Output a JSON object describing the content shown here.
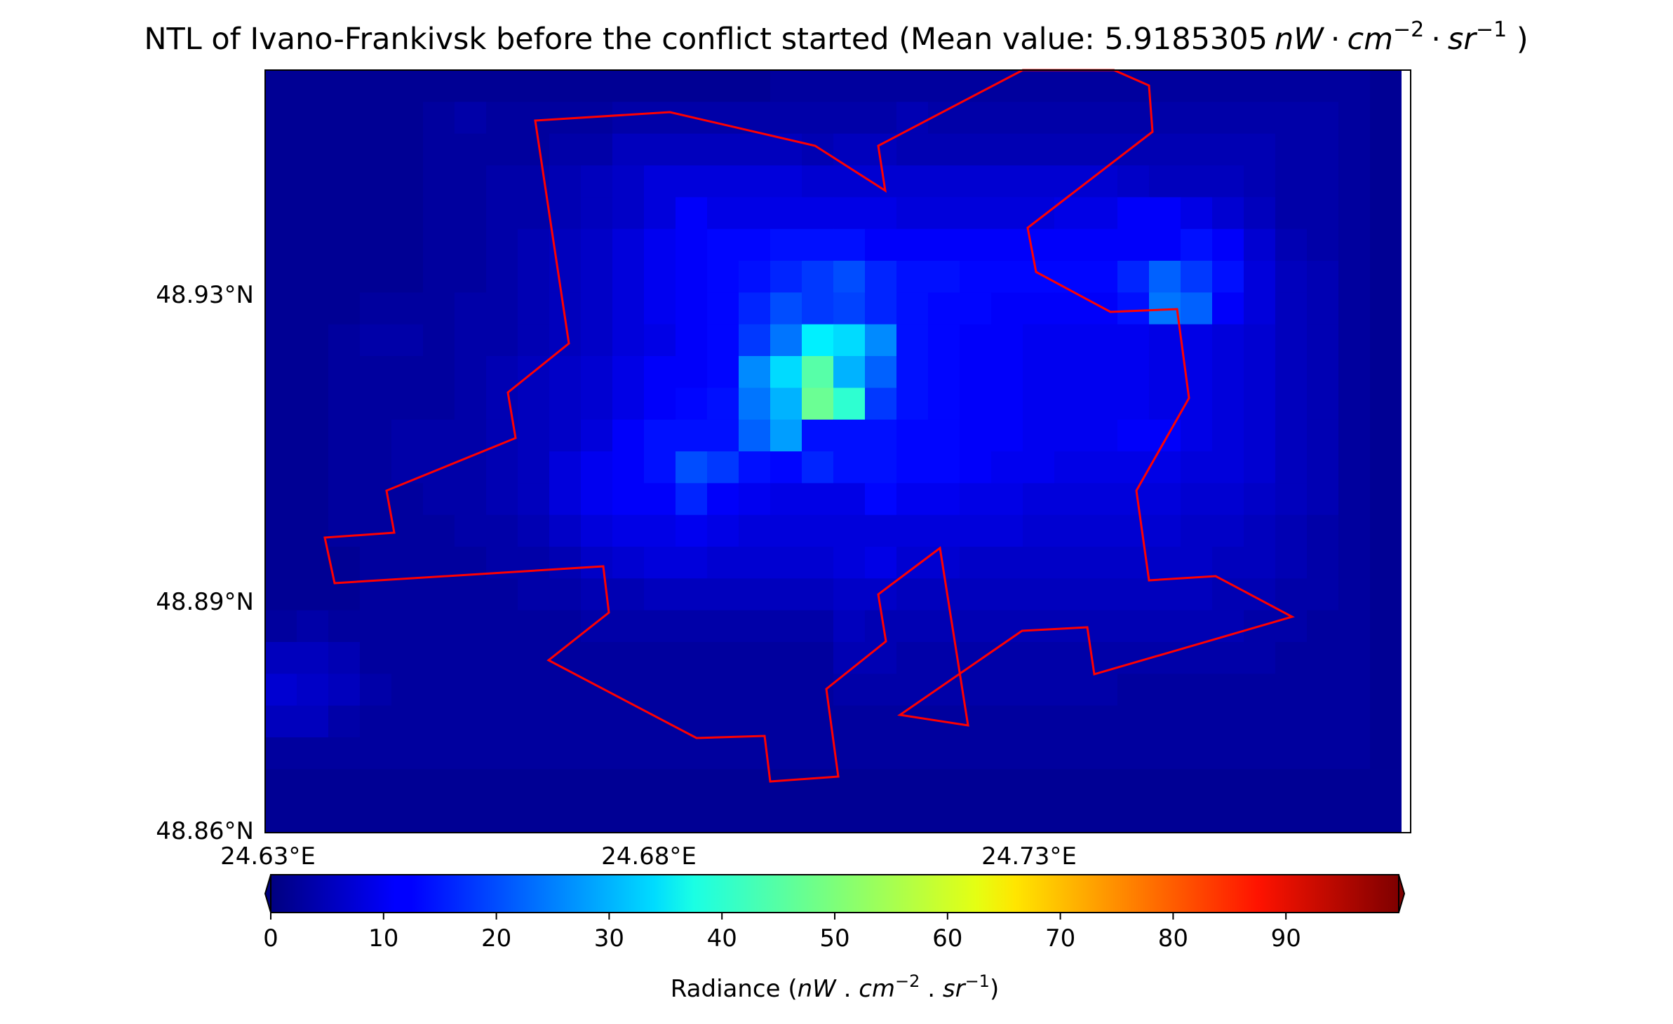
{
  "title": {
    "prefix": "NTL of Ivano-Frankivsk before the conflict started (Mean value: ",
    "value": "5.9185305",
    "unit_nw": "nW",
    "dot": "·",
    "unit_cm": "cm",
    "exp_cm": "−2",
    "unit_sr": "sr",
    "exp_sr": "−1",
    "suffix": " )"
  },
  "map": {
    "lon_ticks": [
      "24.63°E",
      "24.68°E",
      "24.73°E"
    ],
    "lat_ticks": [
      "48.93°N",
      "48.89°N",
      "48.86°N"
    ],
    "boundary_color": "#ff0000",
    "grid_rows": 24,
    "grid_cols": 36
  },
  "colorbar": {
    "colormap": "jet",
    "vmin": 0,
    "vmax": 100,
    "extend": "both",
    "ticks": [
      "0",
      "10",
      "20",
      "30",
      "40",
      "50",
      "60",
      "70",
      "80",
      "90"
    ],
    "label": {
      "prefix": "Radiance (",
      "nw": "nW",
      "sep": " . ",
      "cm": "cm",
      "exp_cm": "−2",
      "sr": "sr",
      "exp_sr": "−1",
      "suffix": ")"
    }
  },
  "radiance_grid": [
    [
      2,
      2,
      2,
      2,
      2,
      2,
      2,
      2,
      2,
      2,
      2,
      2,
      2,
      2,
      2,
      2,
      3,
      3,
      3,
      3,
      3,
      3,
      3,
      3,
      3,
      3,
      3,
      3,
      3,
      3,
      3,
      3,
      3,
      3,
      3,
      2
    ],
    [
      2,
      2,
      2,
      2,
      2,
      3,
      4,
      3,
      3,
      3,
      3,
      4,
      4,
      4,
      4,
      4,
      4,
      4,
      4,
      4,
      5,
      4,
      4,
      4,
      4,
      4,
      4,
      4,
      4,
      4,
      4,
      4,
      4,
      4,
      3,
      2
    ],
    [
      2,
      2,
      2,
      2,
      2,
      3,
      3,
      3,
      3,
      4,
      4,
      6,
      6,
      6,
      6,
      6,
      6,
      5,
      6,
      6,
      5,
      5,
      5,
      5,
      5,
      5,
      5,
      5,
      5,
      5,
      5,
      5,
      4,
      4,
      3,
      2
    ],
    [
      2,
      2,
      2,
      2,
      2,
      3,
      3,
      4,
      4,
      5,
      6,
      7,
      9,
      9,
      9,
      9,
      9,
      8,
      8,
      8,
      8,
      8,
      8,
      8,
      8,
      8,
      8,
      7,
      6,
      6,
      6,
      5,
      4,
      4,
      3,
      2
    ],
    [
      2,
      2,
      2,
      2,
      2,
      3,
      3,
      4,
      4,
      5,
      6,
      7,
      9,
      12,
      10,
      10,
      10,
      10,
      10,
      10,
      9,
      9,
      9,
      9,
      9,
      10,
      10,
      12,
      12,
      10,
      8,
      6,
      4,
      4,
      3,
      2
    ],
    [
      2,
      2,
      2,
      2,
      2,
      3,
      3,
      4,
      5,
      6,
      7,
      9,
      11,
      12,
      13,
      13,
      14,
      14,
      14,
      12,
      12,
      12,
      12,
      12,
      12,
      12,
      12,
      12,
      12,
      14,
      12,
      8,
      5,
      4,
      3,
      2
    ],
    [
      2,
      2,
      2,
      2,
      2,
      3,
      3,
      4,
      5,
      6,
      7,
      9,
      11,
      12,
      13,
      14,
      16,
      18,
      20,
      16,
      14,
      14,
      13,
      13,
      13,
      13,
      13,
      16,
      22,
      18,
      14,
      9,
      6,
      5,
      3,
      2
    ],
    [
      2,
      2,
      2,
      3,
      3,
      3,
      4,
      4,
      5,
      6,
      7,
      9,
      11,
      12,
      13,
      16,
      20,
      18,
      19,
      16,
      14,
      13,
      13,
      12,
      12,
      12,
      12,
      14,
      24,
      22,
      12,
      9,
      6,
      5,
      3,
      2
    ],
    [
      2,
      2,
      3,
      4,
      4,
      3,
      4,
      4,
      5,
      6,
      7,
      9,
      10,
      12,
      13,
      18,
      24,
      36,
      34,
      26,
      14,
      13,
      12,
      12,
      11,
      11,
      11,
      11,
      10,
      10,
      9,
      8,
      6,
      5,
      3,
      2
    ],
    [
      2,
      2,
      3,
      3,
      3,
      3,
      4,
      5,
      6,
      7,
      8,
      10,
      12,
      12,
      13,
      26,
      34,
      46,
      30,
      22,
      14,
      13,
      12,
      12,
      11,
      11,
      11,
      11,
      10,
      10,
      9,
      8,
      6,
      5,
      3,
      2
    ],
    [
      2,
      2,
      3,
      3,
      3,
      3,
      4,
      5,
      6,
      7,
      8,
      10,
      12,
      13,
      14,
      24,
      30,
      48,
      42,
      18,
      14,
      13,
      12,
      12,
      11,
      11,
      11,
      11,
      10,
      10,
      9,
      8,
      6,
      5,
      3,
      2
    ],
    [
      2,
      2,
      3,
      3,
      4,
      4,
      4,
      5,
      6,
      7,
      9,
      12,
      14,
      14,
      14,
      22,
      28,
      14,
      14,
      14,
      13,
      13,
      12,
      12,
      11,
      11,
      11,
      12,
      12,
      10,
      9,
      8,
      6,
      5,
      3,
      2
    ],
    [
      2,
      2,
      3,
      3,
      4,
      4,
      4,
      5,
      6,
      9,
      11,
      12,
      14,
      20,
      18,
      14,
      13,
      16,
      14,
      14,
      13,
      13,
      12,
      11,
      11,
      10,
      10,
      10,
      10,
      9,
      9,
      8,
      6,
      5,
      3,
      2
    ],
    [
      2,
      2,
      3,
      3,
      3,
      4,
      4,
      5,
      6,
      9,
      11,
      12,
      12,
      16,
      12,
      11,
      10,
      10,
      10,
      13,
      11,
      11,
      10,
      10,
      9,
      9,
      9,
      9,
      9,
      8,
      8,
      7,
      6,
      5,
      3,
      2
    ],
    [
      2,
      2,
      3,
      3,
      3,
      3,
      4,
      4,
      5,
      7,
      9,
      10,
      10,
      11,
      10,
      9,
      9,
      9,
      9,
      9,
      9,
      9,
      9,
      9,
      8,
      8,
      8,
      8,
      8,
      7,
      7,
      6,
      5,
      4,
      3,
      2
    ],
    [
      2,
      2,
      2,
      3,
      3,
      3,
      3,
      4,
      4,
      5,
      7,
      8,
      9,
      9,
      8,
      8,
      8,
      8,
      9,
      10,
      8,
      8,
      7,
      7,
      7,
      7,
      7,
      7,
      7,
      7,
      6,
      6,
      5,
      4,
      3,
      2
    ],
    [
      2,
      2,
      2,
      3,
      3,
      3,
      3,
      3,
      4,
      4,
      5,
      5,
      6,
      6,
      6,
      6,
      6,
      6,
      7,
      7,
      6,
      6,
      6,
      6,
      6,
      6,
      6,
      6,
      6,
      6,
      5,
      5,
      4,
      4,
      3,
      2
    ],
    [
      3,
      4,
      3,
      3,
      3,
      3,
      3,
      3,
      3,
      3,
      4,
      4,
      4,
      4,
      4,
      4,
      4,
      4,
      6,
      5,
      5,
      5,
      5,
      5,
      5,
      5,
      5,
      5,
      5,
      5,
      5,
      4,
      4,
      3,
      3,
      2
    ],
    [
      6,
      6,
      5,
      3,
      3,
      3,
      3,
      3,
      3,
      3,
      3,
      3,
      3,
      3,
      3,
      3,
      3,
      3,
      5,
      5,
      4,
      4,
      4,
      4,
      4,
      4,
      4,
      4,
      4,
      4,
      4,
      4,
      3,
      3,
      3,
      2
    ],
    [
      8,
      7,
      6,
      4,
      3,
      3,
      3,
      3,
      3,
      3,
      3,
      3,
      3,
      3,
      3,
      3,
      3,
      3,
      4,
      4,
      4,
      4,
      4,
      4,
      4,
      4,
      4,
      3,
      3,
      3,
      3,
      3,
      3,
      3,
      3,
      2
    ],
    [
      6,
      6,
      4,
      3,
      3,
      3,
      3,
      3,
      3,
      3,
      3,
      3,
      3,
      3,
      3,
      3,
      3,
      3,
      3,
      3,
      3,
      3,
      3,
      3,
      3,
      3,
      3,
      3,
      3,
      3,
      3,
      3,
      3,
      3,
      3,
      2
    ],
    [
      3,
      3,
      3,
      3,
      3,
      3,
      3,
      3,
      3,
      3,
      3,
      3,
      3,
      3,
      3,
      3,
      3,
      3,
      3,
      3,
      3,
      3,
      3,
      3,
      3,
      3,
      3,
      3,
      3,
      3,
      3,
      3,
      3,
      3,
      3,
      2
    ],
    [
      2,
      2,
      2,
      2,
      2,
      2,
      2,
      2,
      2,
      2,
      2,
      2,
      2,
      2,
      2,
      2,
      2,
      2,
      2,
      2,
      2,
      2,
      2,
      2,
      2,
      2,
      2,
      2,
      2,
      2,
      2,
      2,
      2,
      2,
      2,
      2
    ],
    [
      2,
      2,
      2,
      2,
      2,
      2,
      2,
      2,
      2,
      2,
      2,
      2,
      2,
      2,
      2,
      2,
      2,
      2,
      2,
      2,
      2,
      2,
      2,
      2,
      2,
      2,
      2,
      2,
      2,
      2,
      2,
      2,
      2,
      2,
      2,
      2
    ]
  ]
}
